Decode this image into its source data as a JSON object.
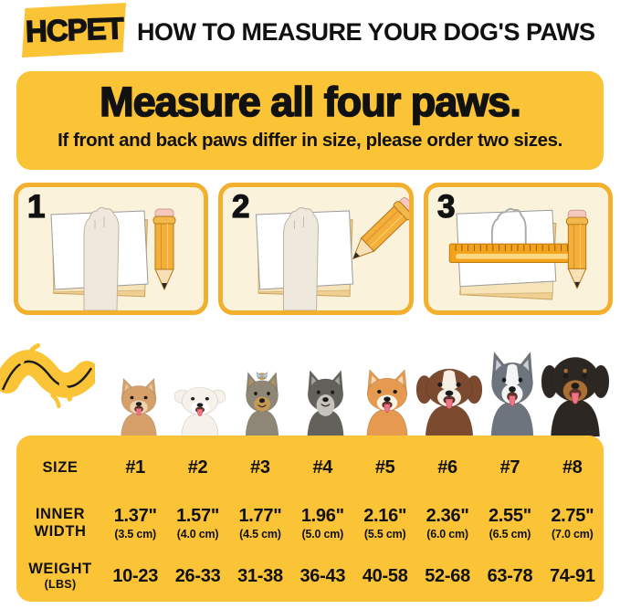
{
  "header": {
    "logo_text": "HCPET",
    "title": "HOW TO MEASURE YOUR DOG'S PAWS"
  },
  "banner": {
    "title": "Measure all four paws.",
    "subtitle": "If front and back paws differ in size, please order two sizes."
  },
  "steps": [
    {
      "number": "1"
    },
    {
      "number": "2"
    },
    {
      "number": "3"
    }
  ],
  "dogs": [
    {
      "breed": "chihuahua",
      "fur": "#D6A06B",
      "muzzle": "#EDD3B2",
      "ear": "up",
      "tongue": true
    },
    {
      "breed": "bichon-frise",
      "fur": "#F6F2E9",
      "muzzle": "#FFFFFF",
      "ear": "round",
      "tongue": true,
      "outline": "#CEC6B4"
    },
    {
      "breed": "yorkshire-terrier",
      "fur": "#8E8676",
      "muzzle": "#C29A55",
      "ear": "up",
      "tongue": false,
      "bow": true
    },
    {
      "breed": "miniature-schnauzer",
      "fur": "#63615C",
      "muzzle": "#C6C3BC",
      "ear": "up",
      "tongue": false,
      "beard": true
    },
    {
      "breed": "shiba-inu",
      "fur": "#E59A50",
      "muzzle": "#FDF4E6",
      "ear": "up",
      "tongue": true
    },
    {
      "breed": "australian-shepherd",
      "fur": "#7C4A2E",
      "muzzle": "#F6EFE6",
      "ear": "drop",
      "tongue": true,
      "blaze": true
    },
    {
      "breed": "siberian-husky",
      "fur": "#6E747E",
      "muzzle": "#F3F4F5",
      "ear": "up",
      "tongue": true,
      "blaze": true
    },
    {
      "breed": "rottweiler",
      "fur": "#2D2724",
      "muzzle": "#A96F33",
      "ear": "drop",
      "tongue": true,
      "brows": true
    }
  ],
  "size_chart": {
    "size_label": "SIZE",
    "inner_width_label": "INNER WIDTH",
    "weight_label": "WEIGHT",
    "weight_unit": "(LBS)",
    "sizes": [
      "#1",
      "#2",
      "#3",
      "#4",
      "#5",
      "#6",
      "#7",
      "#8"
    ],
    "inner_width_in": [
      "1.37\"",
      "1.57\"",
      "1.77\"",
      "1.96\"",
      "2.16\"",
      "2.36\"",
      "2.55\"",
      "2.75\""
    ],
    "inner_width_cm": [
      "(3.5 cm)",
      "(4.0 cm)",
      "(4.5 cm)",
      "(5.0 cm)",
      "(5.5 cm)",
      "(6.0 cm)",
      "(6.5 cm)",
      "(7.0 cm)"
    ],
    "weight_lbs": [
      "10-23",
      "26-33",
      "31-38",
      "36-43",
      "40-58",
      "52-68",
      "63-78",
      "74-91"
    ]
  },
  "colors": {
    "brand_yellow": "#FBC437",
    "step_fill": "#FBF2DC",
    "step_border": "#F2B02E",
    "ink": "#111111"
  }
}
